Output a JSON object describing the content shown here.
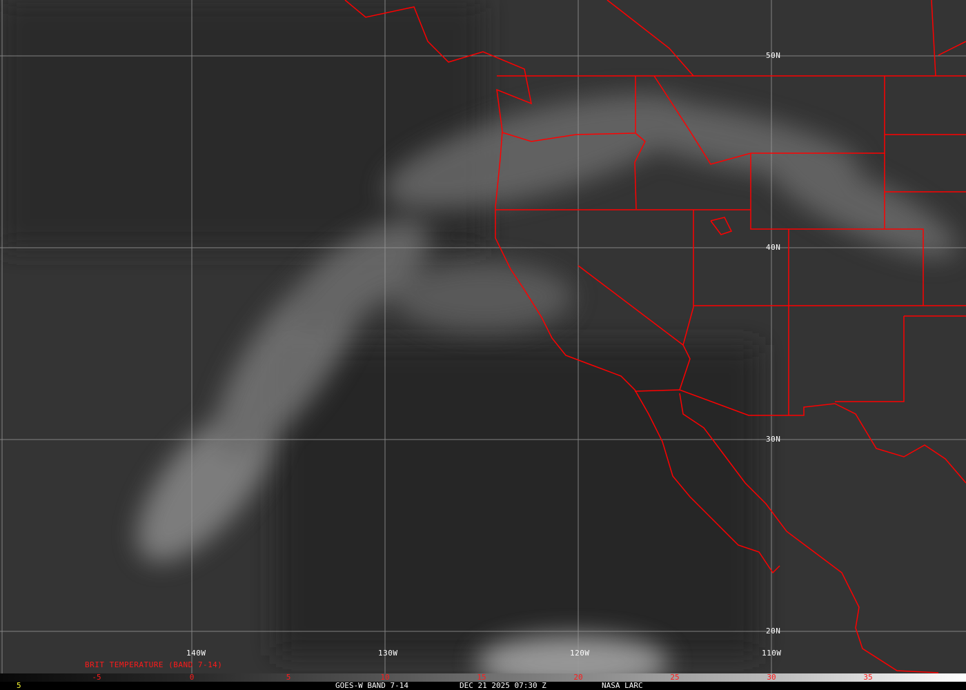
{
  "latitude_labels": [
    "50N",
    "40N",
    "30N",
    "20N"
  ],
  "longitude_labels": [
    "140W",
    "130W",
    "120W",
    "110W"
  ],
  "colorbar": {
    "title": "BRIT TEMPERATURE (BAND 7-14)",
    "ticks": [
      "-5",
      "0",
      "5",
      "10",
      "15",
      "20",
      "25",
      "30",
      "35"
    ],
    "range": [
      -10,
      40
    ]
  },
  "footer": {
    "frame_number": "5",
    "product": "GOES-W BAND 7-14",
    "datetime": "DEC 21 2025 07:30 Z",
    "source": "NASA LARC"
  },
  "colors": {
    "boundaries": "#ff0000",
    "labels": "#ffffff",
    "colorbar_text": "#ff1a1a",
    "frame_number": "#ffff33"
  }
}
